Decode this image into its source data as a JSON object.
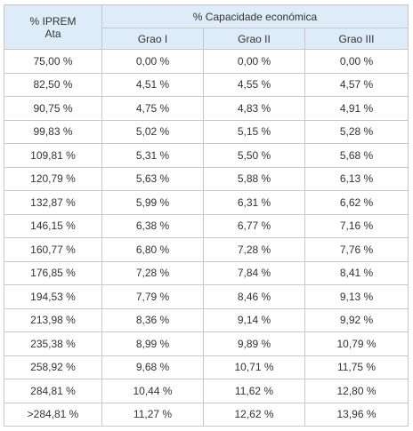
{
  "table": {
    "header": {
      "ipre_line1": "% IPREM",
      "ipre_line2": "Ata",
      "group_label": "% Capacidade económica",
      "subcolumns": [
        "Grao I",
        "Grao II",
        "Grao III"
      ]
    },
    "rows": [
      [
        "75,00 %",
        "0,00 %",
        "0,00 %",
        "0,00 %"
      ],
      [
        "82,50 %",
        "4,51 %",
        "4,55 %",
        "4,57 %"
      ],
      [
        "90,75 %",
        "4,75 %",
        "4,83 %",
        "4,91 %"
      ],
      [
        "99,83 %",
        "5,02 %",
        "5,15 %",
        "5,28 %"
      ],
      [
        "109,81 %",
        "5,31 %",
        "5,50 %",
        "5,68 %"
      ],
      [
        "120,79 %",
        "5,63 %",
        "5,88 %",
        "6,13 %"
      ],
      [
        "132,87 %",
        "5,99 %",
        "6,31 %",
        "6,62 %"
      ],
      [
        "146,15 %",
        "6,38 %",
        "6,77 %",
        "7,16 %"
      ],
      [
        "160,77 %",
        "6,80 %",
        "7,28 %",
        "7,76 %"
      ],
      [
        "176,85 %",
        "7,28 %",
        "7,84 %",
        "8,41 %"
      ],
      [
        "194,53 %",
        "7,79 %",
        "8,46 %",
        "9,13 %"
      ],
      [
        "213,98 %",
        "8,36 %",
        "9,14 %",
        "9,92 %"
      ],
      [
        "235,38 %",
        "8,99 %",
        "9,89 %",
        "10,79 %"
      ],
      [
        "258,92 %",
        "9,68 %",
        "10,71 %",
        "11,75 %"
      ],
      [
        "284,81 %",
        "10,44 %",
        "11,62 %",
        "12,80 %"
      ],
      [
        ">284,81 %",
        "11,27 %",
        "12,62 %",
        "13,96 %"
      ]
    ]
  },
  "colors": {
    "header_bg": "#ddecf8",
    "border": "#c8c8c8",
    "text": "#333333"
  }
}
